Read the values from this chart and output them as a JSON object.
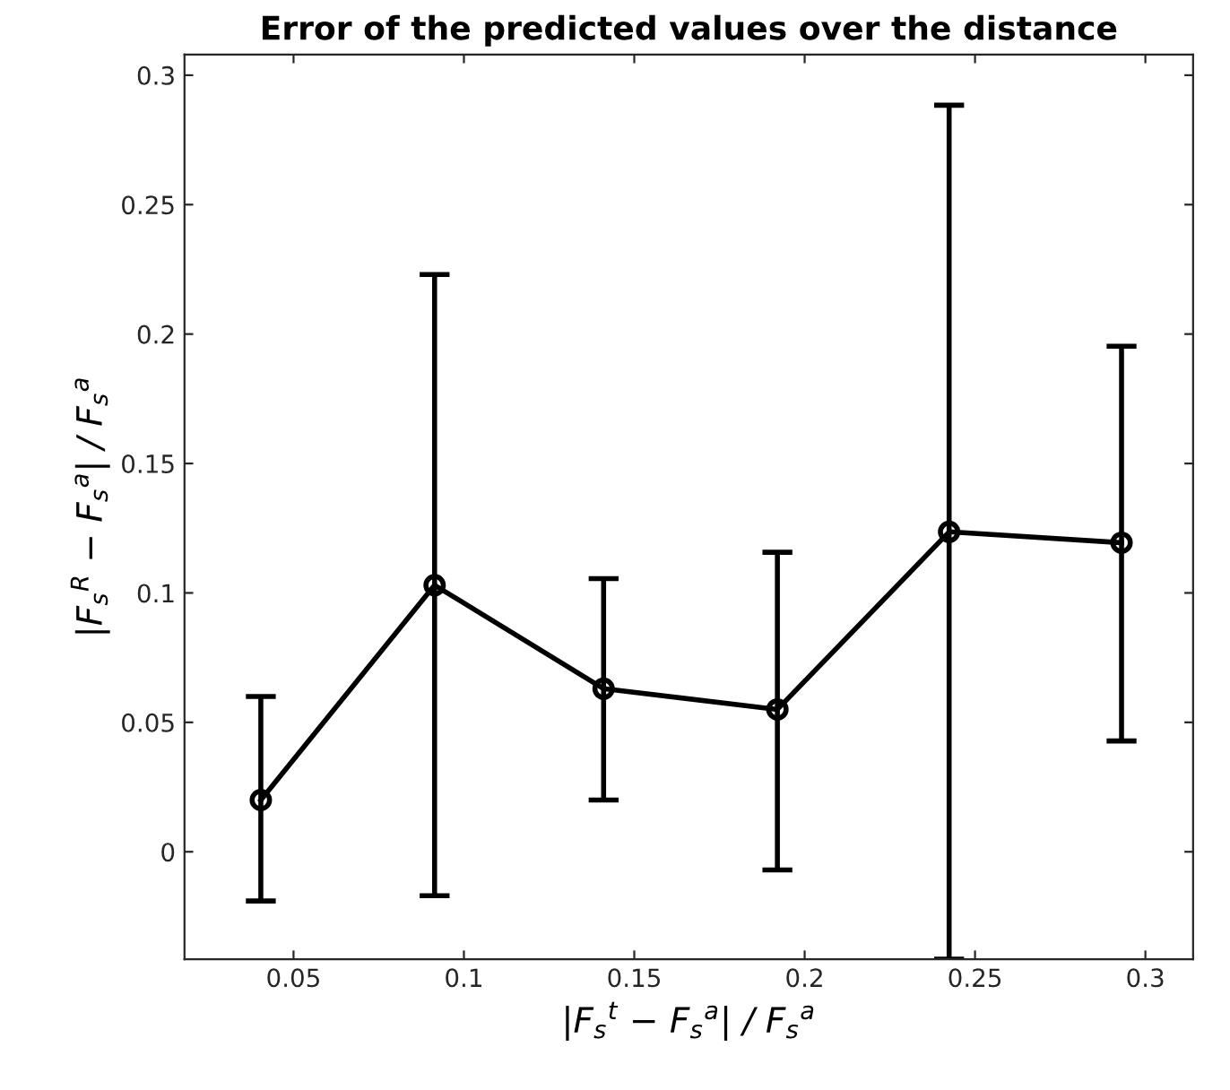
{
  "chart_data": {
    "type": "line",
    "title": "Error of the predicted values over the distance",
    "xlabel": "|F$_{s}$$^{t}$ − F$_{s}$$^{a}$| / F$_{s}$$^{a}$",
    "ylabel": "|F$_{s}$$^{R}$ − F$_{s}$$^{a}$| / F$_{s}$$^{a}$",
    "x": [
      0.0404,
      0.0914,
      0.141,
      0.192,
      0.2424,
      0.293
    ],
    "series": [
      {
        "color": "#000000",
        "values": [
          0.02,
          0.103,
          0.063,
          0.055,
          0.1236,
          0.1194
        ],
        "errors": [
          [
            -0.019,
            0.06
          ],
          [
            -0.017,
            0.223
          ],
          [
            0.02,
            0.1055
          ],
          [
            -0.007,
            0.1157
          ],
          [
            -0.0415,
            0.2884
          ],
          [
            0.0428,
            0.1953
          ]
        ]
      }
    ],
    "xlim": [
      0.018,
      0.314
    ],
    "ylim": [
      -0.0415,
      0.308
    ],
    "xticks": [
      {
        "value": 0.05,
        "label": "0.05"
      },
      {
        "value": 0.1,
        "label": "0.1"
      },
      {
        "value": 0.15,
        "label": "0.15"
      },
      {
        "value": 0.2,
        "label": "0.2"
      },
      {
        "value": 0.25,
        "label": "0.25"
      },
      {
        "value": 0.3,
        "label": "0.3"
      }
    ],
    "yticks": [
      0,
      {
        "value": 0.05,
        "label": "0.05"
      },
      {
        "value": 0.1,
        "label": "0.1"
      },
      {
        "value": 0.15,
        "label": "0.15"
      },
      {
        "value": 0.2,
        "label": "0.2"
      },
      {
        "value": 0.25,
        "label": "0.25"
      },
      {
        "value": 0.3,
        "label": "0.3"
      }
    ],
    "marker": "circle",
    "line_style": "solid",
    "grid": false,
    "legend": false
  }
}
